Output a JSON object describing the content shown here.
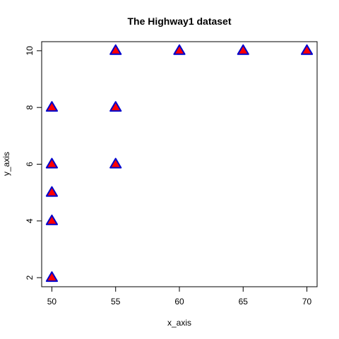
{
  "chart_data": {
    "type": "scatter",
    "title": "The Highway1 dataset",
    "xlabel": "x_axis",
    "ylabel": "y_axis",
    "xlim": [
      49.2,
      70.8
    ],
    "ylim": [
      1.68,
      10.32
    ],
    "xticks": [
      50,
      55,
      60,
      65,
      70
    ],
    "yticks": [
      2,
      4,
      6,
      8,
      10
    ],
    "grid": false,
    "marker": "triangle",
    "marker_fill": "#ff0000",
    "marker_stroke": "#0000cc",
    "points": [
      {
        "x": 50,
        "y": 2
      },
      {
        "x": 50,
        "y": 4
      },
      {
        "x": 50,
        "y": 5
      },
      {
        "x": 50,
        "y": 6
      },
      {
        "x": 50,
        "y": 8
      },
      {
        "x": 55,
        "y": 6
      },
      {
        "x": 55,
        "y": 8
      },
      {
        "x": 55,
        "y": 10
      },
      {
        "x": 60,
        "y": 10
      },
      {
        "x": 65,
        "y": 10
      },
      {
        "x": 70,
        "y": 10
      }
    ]
  }
}
